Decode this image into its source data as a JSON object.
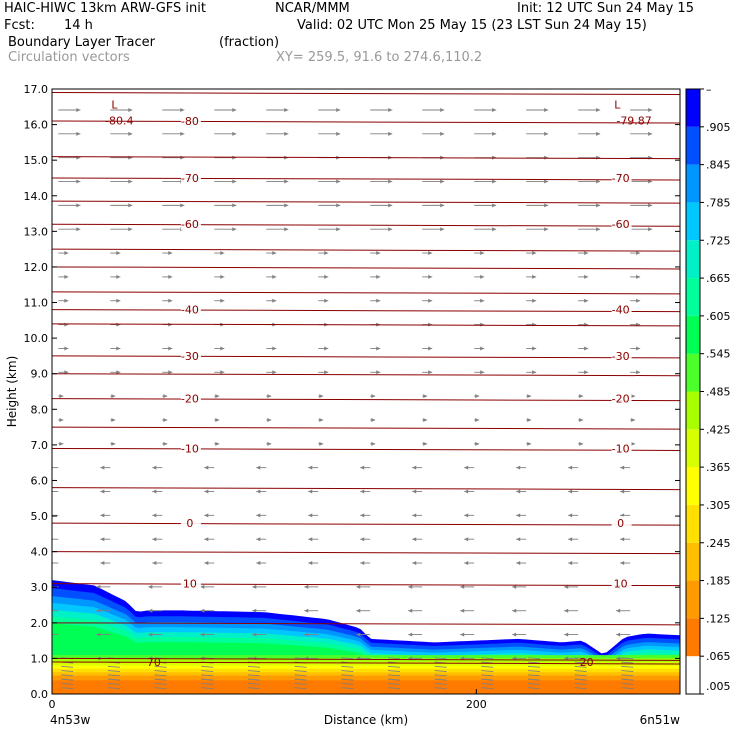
{
  "header": {
    "title_left": "HAIC-HIWC 13km ARW-GFS init",
    "org": "NCAR/MMM",
    "init": "Init: 12 UTC Sun 24 May 15",
    "fcst_label": "Fcst:",
    "fcst_value": "14 h",
    "valid": "Valid: 02 UTC Mon 25 May 15 (23 LST Sun 24 May 15)",
    "field1_name": "Boundary Layer Tracer",
    "field1_units": "(fraction)",
    "field2_name": "Circulation vectors",
    "xsec": "XY= 259.5, 91.6 to 274.6,110.2"
  },
  "colors": {
    "contour": "#8b0000",
    "vector": "#808080",
    "scale": [
      "#ffffff",
      "#ff7a00",
      "#ff9a00",
      "#ffbf00",
      "#ffe000",
      "#ffff00",
      "#d8ff00",
      "#a8ff00",
      "#4cff2a",
      "#00ff55",
      "#00ff9a",
      "#00f0c8",
      "#00c8ff",
      "#0096ff",
      "#0050ff",
      "#0000ff"
    ]
  },
  "chart_data": {
    "type": "heatmap",
    "title": "Boundary Layer Tracer",
    "xlabel": "Distance (km)",
    "ylabel": "Height (km)",
    "xlim": [
      0,
      296
    ],
    "ylim": [
      0.0,
      17.0
    ],
    "x_ticks": [
      "0",
      "200"
    ],
    "x_tick_values": [
      0,
      200
    ],
    "y_ticks": [
      "0.0",
      "1.0",
      "2.0",
      "3.0",
      "4.0",
      "5.0",
      "6.0",
      "7.0",
      "8.0",
      "9.0",
      "10.0",
      "11.0",
      "12.0",
      "13.0",
      "14.0",
      "15.0",
      "16.0",
      "17.0"
    ],
    "endpoint_labels": [
      "4n53w",
      "6n51w"
    ],
    "colorbar": {
      "levels": [
        ".005",
        ".065",
        ".125",
        ".185",
        ".245",
        ".305",
        ".365",
        ".425",
        ".485",
        ".545",
        ".605",
        ".665",
        ".725",
        ".785",
        ".845",
        ".905",
        "–"
      ],
      "level_values": [
        0.005,
        0.065,
        0.125,
        0.185,
        0.245,
        0.305,
        0.365,
        0.425,
        0.485,
        0.545,
        0.605,
        0.665,
        0.725,
        0.785,
        0.845,
        0.905
      ]
    },
    "tracer_boundary": {
      "x": [
        0,
        20,
        35,
        40,
        45,
        60,
        100,
        130,
        145,
        150,
        180,
        220,
        240,
        250,
        260,
        270,
        280,
        296
      ],
      "top": [
        3.2,
        3.05,
        2.6,
        2.3,
        2.35,
        2.35,
        2.3,
        2.1,
        1.85,
        1.55,
        1.45,
        1.55,
        1.45,
        1.5,
        1.1,
        1.6,
        1.7,
        1.65
      ]
    },
    "temperature_contours": [
      {
        "label": "-80",
        "y": 16.1
      },
      {
        "label": "-70",
        "y": 14.5
      },
      {
        "label": "-60",
        "y": 13.2
      },
      {
        "label": "-40",
        "y": 10.8
      },
      {
        "label": "-30",
        "y": 9.5
      },
      {
        "label": "-20",
        "y": 8.3
      },
      {
        "label": "-10",
        "y": 6.9
      },
      {
        "label": "0",
        "y": 4.8
      },
      {
        "label": "10",
        "y": 3.1
      },
      {
        "label": "20",
        "y": 0.9
      }
    ],
    "unlabeled_contours": [
      16.9,
      15.1,
      13.85,
      12.5,
      12.0,
      11.3,
      10.4,
      9.0,
      7.5,
      5.8,
      4.0,
      2.0,
      1.0
    ],
    "annotations": [
      "L",
      "-80.4",
      "L",
      "-79.87"
    ]
  }
}
